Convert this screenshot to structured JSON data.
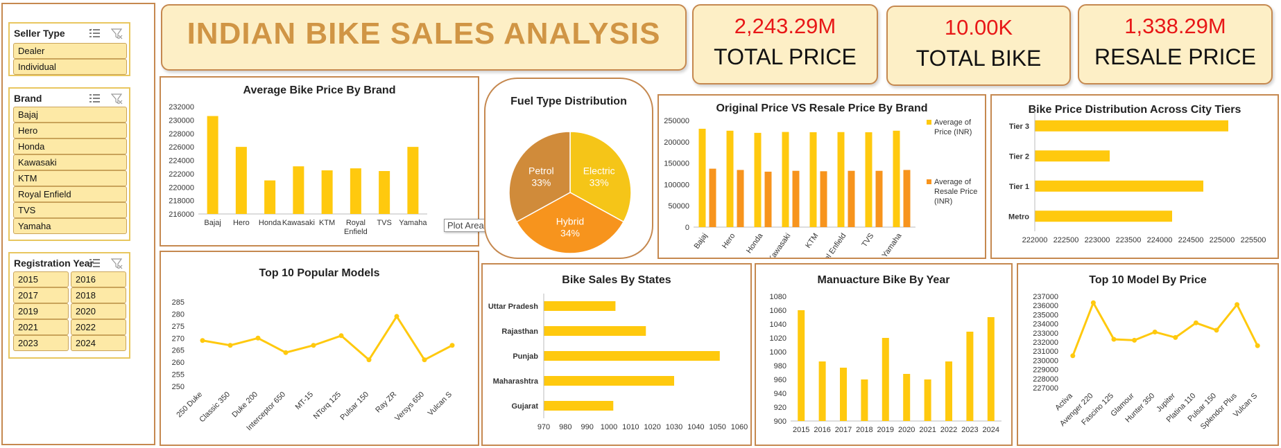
{
  "dashboard": {
    "title": "INDIAN BIKE SALES ANALYSIS",
    "kpis": [
      {
        "value": "2,243.29M",
        "label": "TOTAL PRICE"
      },
      {
        "value": "10.00K",
        "label": "TOTAL BIKE"
      },
      {
        "value": "1,338.29M",
        "label": "RESALE PRICE"
      }
    ],
    "tooltip": "Plot Area"
  },
  "slicers": {
    "seller_type": {
      "title": "Seller Type",
      "items": [
        "Dealer",
        "Individual"
      ]
    },
    "brand": {
      "title": "Brand",
      "items": [
        "Bajaj",
        "Hero",
        "Honda",
        "Kawasaki",
        "KTM",
        "Royal Enfield",
        "TVS",
        "Yamaha"
      ]
    },
    "registration_year": {
      "title": "Registration Year",
      "items": [
        "2015",
        "2016",
        "2017",
        "2018",
        "2019",
        "2020",
        "2021",
        "2022",
        "2023",
        "2024"
      ]
    }
  },
  "chart_data": [
    {
      "id": "avg_price_brand",
      "type": "bar",
      "title": "Average Bike Price By Brand",
      "categories": [
        "Bajaj",
        "Hero",
        "Honda",
        "Kawasaki",
        "KTM",
        "Royal Enfield",
        "TVS",
        "Yamaha"
      ],
      "values": [
        230600,
        226000,
        221000,
        223100,
        222500,
        222800,
        222400,
        226000
      ],
      "ylim": [
        216000,
        232000
      ],
      "yticks": [
        216000,
        218000,
        220000,
        222000,
        224000,
        226000,
        228000,
        230000,
        232000
      ],
      "color": "#ffc90e"
    },
    {
      "id": "fuel_type",
      "type": "pie",
      "title": "Fuel Type Distribution",
      "slices": [
        {
          "label": "Electric",
          "pct_label": "33%",
          "value": 33,
          "color": "#f5c518"
        },
        {
          "label": "Hybrid",
          "pct_label": "34%",
          "value": 34,
          "color": "#f7941d"
        },
        {
          "label": "Petrol",
          "pct_label": "33%",
          "value": 33,
          "color": "#d08b3a"
        }
      ]
    },
    {
      "id": "orig_vs_resale",
      "type": "bar",
      "title": "Original Price VS Resale Price By Brand",
      "categories": [
        "Bajaj",
        "Hero",
        "Honda",
        "Kawasaki",
        "KTM",
        "Royal Enfield",
        "TVS",
        "Yamaha"
      ],
      "series": [
        {
          "name": "Average of Price (INR)",
          "values": [
            230600,
            226000,
            221000,
            223100,
            222500,
            222800,
            222400,
            226000
          ],
          "color": "#ffc90e"
        },
        {
          "name": "Average of Resale Price (INR)",
          "values": [
            137000,
            134000,
            130000,
            132000,
            131000,
            132000,
            132000,
            134000
          ],
          "color": "#f7941d"
        }
      ],
      "ylim": [
        0,
        250000
      ],
      "yticks": [
        0,
        50000,
        100000,
        150000,
        200000,
        250000
      ]
    },
    {
      "id": "city_tiers",
      "type": "bar",
      "orientation": "horizontal",
      "title": "Bike Price Distribution Across City Tiers",
      "categories": [
        "Metro",
        "Tier 1",
        "Tier 2",
        "Tier 3"
      ],
      "values": [
        224200,
        224700,
        223200,
        225100
      ],
      "xlim": [
        222000,
        225500
      ],
      "xticks": [
        222000,
        222500,
        223000,
        223500,
        224000,
        224500,
        225000,
        225500
      ],
      "color": "#ffc90e"
    },
    {
      "id": "popular_models",
      "type": "line",
      "title": "Top 10 Popular Models",
      "categories": [
        "250 Duke",
        "Classic 350",
        "Duke 200",
        "Interceptor 650",
        "MT-15",
        "NTorq 125",
        "Pulsar 150",
        "Ray ZR",
        "Versys 650",
        "Vulcan S"
      ],
      "values": [
        269,
        267,
        270,
        264,
        267,
        271,
        261,
        279,
        261,
        267
      ],
      "ylim": [
        250,
        285
      ],
      "yticks": [
        250,
        255,
        260,
        265,
        270,
        275,
        280,
        285
      ],
      "color": "#ffc90e"
    },
    {
      "id": "sales_states",
      "type": "bar",
      "orientation": "horizontal",
      "title": "Bike Sales By States",
      "categories": [
        "Gujarat",
        "Maharashtra",
        "Punjab",
        "Rajasthan",
        "Uttar Pradesh"
      ],
      "values": [
        1002,
        1030,
        1051,
        1017,
        1003
      ],
      "xlim": [
        970,
        1060
      ],
      "xticks": [
        970,
        980,
        990,
        1000,
        1010,
        1020,
        1030,
        1040,
        1050,
        1060
      ],
      "color": "#ffc90e"
    },
    {
      "id": "manufacture_year",
      "type": "bar",
      "title": "Manuacture Bike By Year",
      "categories": [
        "2015",
        "2016",
        "2017",
        "2018",
        "2019",
        "2020",
        "2021",
        "2022",
        "2023",
        "2024"
      ],
      "values": [
        1060,
        986,
        977,
        960,
        1020,
        968,
        960,
        986,
        1029,
        1050
      ],
      "ylim": [
        900,
        1080
      ],
      "yticks": [
        900,
        920,
        940,
        960,
        980,
        1000,
        1020,
        1040,
        1060,
        1080
      ],
      "color": "#ffc90e"
    },
    {
      "id": "top_model_price",
      "type": "line",
      "title": "Top 10 Model By Price",
      "categories": [
        "Activa",
        "Avenger 220",
        "Fascino 125",
        "Glamour",
        "Hunter 350",
        "Jupiter",
        "Platina 110",
        "Pulsar 150",
        "Splendor Plus",
        "Vulcan S"
      ],
      "values": [
        230500,
        236300,
        232300,
        232200,
        233100,
        232500,
        234100,
        233300,
        236100,
        231600
      ],
      "ylim": [
        227000,
        237000
      ],
      "yticks": [
        227000,
        228000,
        229000,
        230000,
        231000,
        232000,
        233000,
        234000,
        235000,
        236000,
        237000
      ],
      "color": "#ffc90e"
    }
  ]
}
